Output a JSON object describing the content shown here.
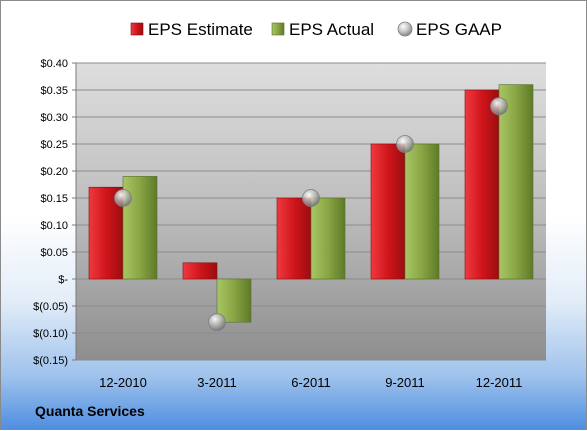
{
  "company": "Quanta Services",
  "chart_data": {
    "type": "bar",
    "title": "",
    "xlabel": "",
    "ylabel": "",
    "categories": [
      "12-2010",
      "3-2011",
      "6-2011",
      "9-2011",
      "12-2011"
    ],
    "series": [
      {
        "name": "EPS Estimate",
        "kind": "bar",
        "color": "#d0151b",
        "values": [
          0.17,
          0.03,
          0.15,
          0.25,
          0.35
        ]
      },
      {
        "name": "EPS Actual",
        "kind": "bar",
        "color": "#89a544",
        "values": [
          0.19,
          -0.08,
          0.15,
          0.25,
          0.36
        ]
      },
      {
        "name": "EPS GAAP",
        "kind": "marker",
        "color": "#a8a8a8",
        "values": [
          0.15,
          -0.08,
          0.15,
          0.25,
          0.32
        ]
      }
    ],
    "ylim": [
      -0.15,
      0.4
    ],
    "yticks": [
      0.4,
      0.35,
      0.3,
      0.25,
      0.2,
      0.15,
      0.1,
      0.05,
      0.0,
      -0.05,
      -0.1,
      -0.15
    ],
    "ytick_labels": [
      "$0.40",
      "$0.35",
      "$0.30",
      "$0.25",
      "$0.20",
      "$0.15",
      "$0.10",
      "$0.05",
      "$-",
      "$(0.05)",
      "$(0.10)",
      "$(0.15)"
    ],
    "grid": true,
    "legend": "top"
  }
}
